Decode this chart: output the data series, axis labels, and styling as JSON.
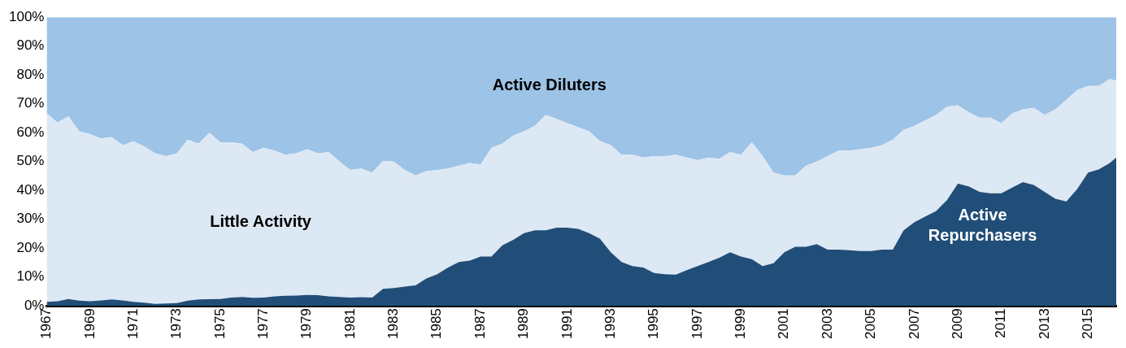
{
  "chart_data": {
    "type": "area",
    "stacked": true,
    "x": [
      1967,
      1967.5,
      1968,
      1968.5,
      1969,
      1969.5,
      1970,
      1970.5,
      1971,
      1971.5,
      1972,
      1972.5,
      1973,
      1973.5,
      1974,
      1974.5,
      1975,
      1975.5,
      1976,
      1976.5,
      1977,
      1977.5,
      1978,
      1978.5,
      1979,
      1979.5,
      1980,
      1980.5,
      1981,
      1981.5,
      1982,
      1982.5,
      1983,
      1983.5,
      1984,
      1984.5,
      1985,
      1985.5,
      1986,
      1986.5,
      1987,
      1987.5,
      1988,
      1988.5,
      1989,
      1989.5,
      1990,
      1990.5,
      1991,
      1991.5,
      1992,
      1992.5,
      1993,
      1993.5,
      1994,
      1994.5,
      1995,
      1995.5,
      1996,
      1996.5,
      1997,
      1997.5,
      1998,
      1998.5,
      1999,
      1999.5,
      2000,
      2000.5,
      2001,
      2001.5,
      2002,
      2002.5,
      2003,
      2003.5,
      2004,
      2004.5,
      2005,
      2005.5,
      2006,
      2006.5,
      2007,
      2007.5,
      2008,
      2008.5,
      2009,
      2009.5,
      2010,
      2010.5,
      2011,
      2011.5,
      2012,
      2012.5,
      2013,
      2013.5,
      2014,
      2014.5,
      2015,
      2015.5,
      2016,
      2016.3
    ],
    "series": [
      {
        "name": "Active Repurchasers",
        "color": "#214e78",
        "values": [
          1.4,
          1.6,
          2.4,
          1.8,
          1.6,
          1.9,
          2.2,
          1.9,
          1.4,
          1.1,
          0.7,
          0.8,
          1,
          1.8,
          2.2,
          2.3,
          2.4,
          2.9,
          3.1,
          2.8,
          2.9,
          3.3,
          3.5,
          3.6,
          3.8,
          3.7,
          3.3,
          3.1,
          2.9,
          3,
          2.9,
          5.9,
          6.2,
          6.7,
          7.1,
          9.5,
          11,
          13.3,
          15.2,
          15.7,
          17.1,
          17.1,
          21,
          22.9,
          25.2,
          26.2,
          26.2,
          27.1,
          27.1,
          26.7,
          25.2,
          23.3,
          18.6,
          15.2,
          13.8,
          13.3,
          11.4,
          11,
          10.8,
          12.4,
          13.8,
          15.2,
          16.7,
          18.6,
          17.1,
          16.2,
          13.8,
          14.8,
          18.6,
          20.5,
          20.5,
          21.4,
          19.5,
          19.5,
          19.3,
          19,
          19,
          19.5,
          19.5,
          26.2,
          29,
          31,
          32.9,
          36.7,
          42.4,
          41.4,
          39.5,
          39,
          39,
          41,
          42.9,
          41.9,
          39.5,
          37.1,
          36.2,
          40.5,
          46.2,
          47.3,
          49.5,
          51.4
        ]
      },
      {
        "name": "Little Activity",
        "color": "#dde8f5",
        "values": [
          65.3,
          61.9,
          63.3,
          58.7,
          57.9,
          56.1,
          56.3,
          53.8,
          55.6,
          54.1,
          52.2,
          51.1,
          51.9,
          55.8,
          54,
          57.7,
          54.3,
          53.8,
          53.1,
          50.5,
          51.9,
          50.5,
          48.9,
          49.3,
          50.5,
          49.2,
          50,
          46.9,
          44.2,
          44.6,
          43.3,
          44.3,
          43.8,
          40.4,
          38.1,
          37.2,
          36.1,
          34.3,
          33.4,
          33.8,
          31.9,
          37.7,
          35.2,
          36.1,
          35.3,
          36.2,
          40,
          37.7,
          36.2,
          35.2,
          35.3,
          33.8,
          37.1,
          37.2,
          38.6,
          38.1,
          40.5,
          40.9,
          41.6,
          39,
          36.7,
          36.2,
          34.3,
          34.7,
          35.3,
          40.5,
          38.1,
          31.4,
          26.6,
          24.7,
          28.1,
          28.6,
          32.4,
          34.3,
          34.5,
          35.3,
          35.8,
          36.2,
          38.1,
          34.8,
          33.4,
          33.3,
          33.3,
          32.3,
          27.1,
          25.7,
          25.7,
          26.2,
          24.3,
          25.7,
          25.2,
          26.7,
          26.7,
          31,
          35.2,
          34.3,
          30,
          28.9,
          29.1,
          26.7
        ]
      },
      {
        "name": "Active Diluters",
        "color": "#9dc3e6",
        "values": [
          33.3,
          36.5,
          34.3,
          39.5,
          40.5,
          42,
          41.5,
          44.3,
          43,
          44.8,
          47.1,
          48.1,
          47.1,
          42.4,
          43.8,
          40,
          43.3,
          43.3,
          43.8,
          46.7,
          45.2,
          46.2,
          47.6,
          47.1,
          45.7,
          47.1,
          46.7,
          50,
          52.9,
          52.4,
          53.8,
          49.8,
          50,
          52.9,
          54.8,
          53.3,
          52.9,
          52.4,
          51.4,
          50.5,
          51,
          45.2,
          43.8,
          41,
          39.5,
          37.6,
          33.8,
          35.2,
          36.7,
          38.1,
          39.5,
          42.9,
          44.3,
          47.6,
          47.6,
          48.6,
          48.1,
          48.1,
          47.6,
          48.6,
          49.5,
          48.6,
          49,
          46.7,
          47.6,
          43.3,
          48.1,
          53.8,
          54.8,
          54.8,
          51.4,
          50,
          48.1,
          46.2,
          46.2,
          45.7,
          45.2,
          44.3,
          42.4,
          39,
          37.6,
          35.7,
          33.8,
          31,
          30.5,
          32.9,
          34.8,
          34.8,
          36.7,
          33.3,
          31.9,
          31.4,
          33.8,
          31.9,
          28.6,
          25.2,
          23.8,
          23.8,
          21.4,
          21.9
        ]
      }
    ],
    "xlim": [
      1967,
      2016.3
    ],
    "xticks": [
      1967,
      1969,
      1971,
      1973,
      1975,
      1977,
      1979,
      1981,
      1983,
      1985,
      1987,
      1989,
      1991,
      1993,
      1995,
      1997,
      1999,
      2001,
      2003,
      2005,
      2007,
      2009,
      2011,
      2013,
      2015
    ],
    "ylim": [
      0,
      100
    ],
    "yticks": [
      {
        "value": 0,
        "label": "0%"
      },
      {
        "value": 10,
        "label": "10%"
      },
      {
        "value": 20,
        "label": "20%"
      },
      {
        "value": 30,
        "label": "30%"
      },
      {
        "value": 40,
        "label": "40%"
      },
      {
        "value": 50,
        "label": "50%"
      },
      {
        "value": 60,
        "label": "60%"
      },
      {
        "value": 70,
        "label": "70%"
      },
      {
        "value": 80,
        "label": "80%"
      },
      {
        "value": 90,
        "label": "90%"
      },
      {
        "value": 100,
        "label": "100%"
      }
    ],
    "grid": false,
    "legend": false
  }
}
